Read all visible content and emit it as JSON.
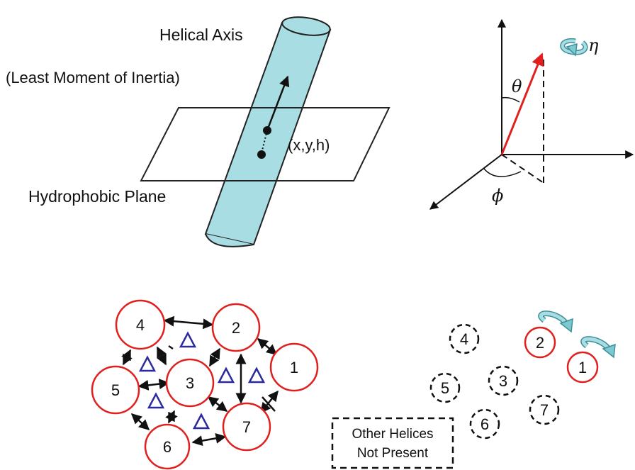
{
  "panel_a": {
    "helical_axis_label": "Helical Axis",
    "inertia_label": "(Least Moment of Inertia)",
    "position_label": "(x,y,h)",
    "plane_label": "Hydrophobic Plane"
  },
  "panel_b": {
    "theta": "θ",
    "phi": "ϕ",
    "eta": "η"
  },
  "panel_c": {
    "helices": [
      "1",
      "2",
      "3",
      "4",
      "5",
      "6",
      "7"
    ]
  },
  "panel_d": {
    "present_helices": [
      "1",
      "2"
    ],
    "absent_helices": [
      "3",
      "4",
      "5",
      "6",
      "7"
    ],
    "legend_line1": "Other Helices",
    "legend_line2": "Not Present"
  },
  "colors": {
    "helix_fill": "#a8dde4",
    "vector": "#e0201e",
    "circle_border": "#e0201e",
    "triangle": "#2b2b9e",
    "rotation_arrow": "#7ec8cf"
  }
}
